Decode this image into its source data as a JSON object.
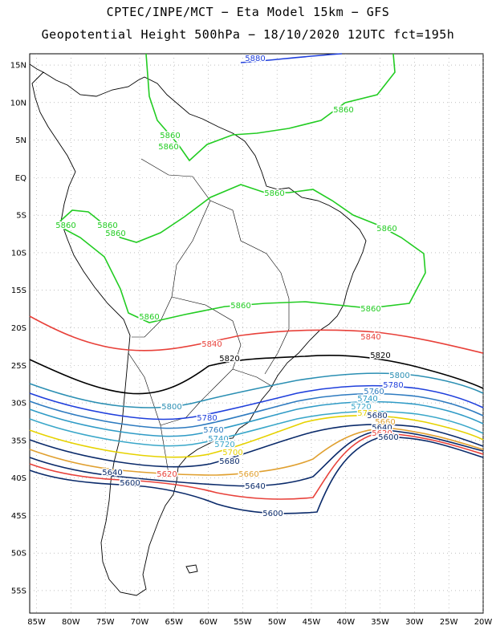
{
  "header": {
    "line1": "CPTEC/INPE/MCT −  Eta Model 15km − GFS",
    "line2": "Geopotential Height 500hPa − 18/10/2020 12UTC fct=195h"
  },
  "axes": {
    "lat_labels": [
      "15N",
      "10N",
      "5N",
      "EQ",
      "5S",
      "10S",
      "15S",
      "20S",
      "25S",
      "30S",
      "35S",
      "40S",
      "45S",
      "50S",
      "55S"
    ],
    "lon_labels": [
      "85W",
      "80W",
      "75W",
      "70W",
      "65W",
      "60W",
      "55W",
      "50W",
      "45W",
      "40W",
      "35W",
      "30W",
      "25W",
      "20W"
    ]
  },
  "map_data": {
    "lat_range": [
      -58,
      16.5
    ],
    "lon_range": [
      -86,
      -20
    ],
    "grid": "dotted",
    "contours": [
      {
        "value": 5880,
        "color": "#1f3fdc",
        "labels": [
          "5880"
        ]
      },
      {
        "value": 5860,
        "color": "#22cc22",
        "labels": [
          "5860",
          "5860",
          "5860",
          "5860",
          "5860",
          "5860",
          "5860",
          "5860",
          "5860",
          "5860",
          "5860"
        ]
      },
      {
        "value": 5840,
        "color": "#e8413a",
        "labels": [
          "5840",
          "5840"
        ]
      },
      {
        "value": 5820,
        "color": "#000000",
        "labels": [
          "5820",
          "5820"
        ]
      },
      {
        "value": 5800,
        "color": "#2b8fb3",
        "labels": [
          "5800",
          "5800"
        ]
      },
      {
        "value": 5780,
        "color": "#1f3fdc",
        "labels": [
          "5780",
          "5780"
        ]
      },
      {
        "value": 5760,
        "color": "#2e7bc0",
        "labels": [
          "5760",
          "5760"
        ]
      },
      {
        "value": 5740,
        "color": "#2f9bc6",
        "labels": [
          "5740",
          "5740"
        ]
      },
      {
        "value": 5720,
        "color": "#3aa7c9",
        "labels": [
          "5720",
          "5720"
        ]
      },
      {
        "value": 5700,
        "color": "#e6d200",
        "labels": [
          "5700",
          "5700"
        ]
      },
      {
        "value": 5680,
        "color": "#0a2a6a",
        "labels": [
          "5680",
          "5680"
        ]
      },
      {
        "value": 5660,
        "color": "#e0a030",
        "labels": [
          "5660",
          "5660"
        ]
      },
      {
        "value": 5640,
        "color": "#0a2a6a",
        "labels": [
          "5640",
          "5640",
          "5640"
        ]
      },
      {
        "value": 5620,
        "color": "#e8413a",
        "labels": [
          "5620",
          "5620"
        ]
      },
      {
        "value": 5600,
        "color": "#0a2a6a",
        "labels": [
          "5600",
          "5600",
          "5600"
        ]
      }
    ]
  }
}
